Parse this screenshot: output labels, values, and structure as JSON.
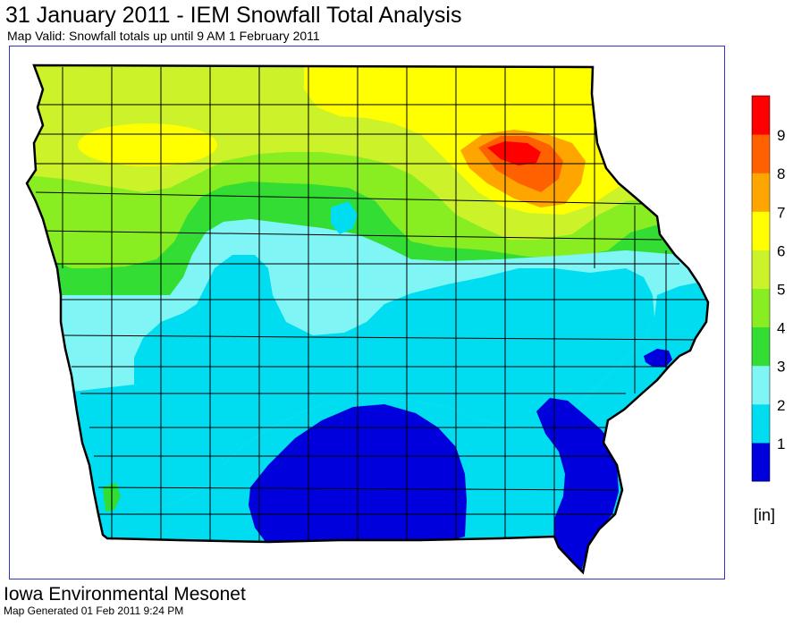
{
  "title": "31 January 2011 - IEM Snowfall Total Analysis",
  "subtitle": "Map Valid: Snowfall totals up until 9 AM 1 February 2011",
  "legend": {
    "units": "[in]",
    "levels": [
      {
        "label": "1",
        "color": "#0000dd"
      },
      {
        "label": "2",
        "color": "#00ddf0"
      },
      {
        "label": "3",
        "color": "#7ff5f5"
      },
      {
        "label": "4",
        "color": "#33dd33"
      },
      {
        "label": "5",
        "color": "#88ee22"
      },
      {
        "label": "6",
        "color": "#ccf22a"
      },
      {
        "label": "7",
        "color": "#ffff00"
      },
      {
        "label": "8",
        "color": "#ffa500"
      },
      {
        "label": "9",
        "color": "#ff6000"
      },
      {
        "label": "",
        "color": "#ff0000"
      }
    ]
  },
  "footer": {
    "organization": "Iowa Environmental Mesonet",
    "generated": "Map Generated 01 Feb 2011 9:24 PM"
  }
}
